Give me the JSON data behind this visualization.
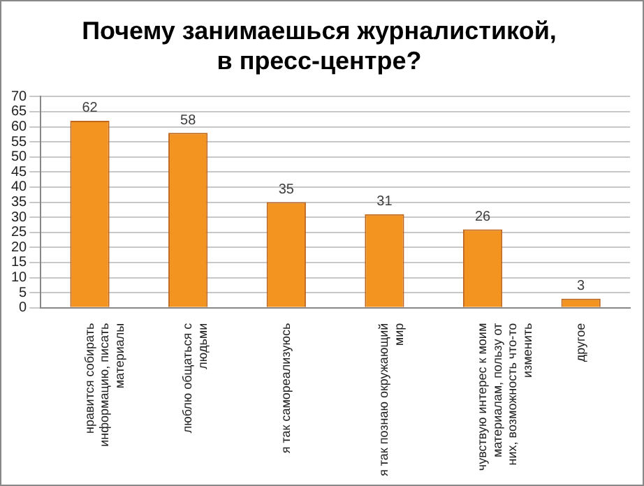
{
  "chart_data": {
    "type": "bar",
    "title": "Почему занимаешься журналистикой, в пресс-центре?",
    "categories": [
      "нравится собирать информацию, писать материалы",
      "люблю общаться с людьми",
      "я так самореализуюсь",
      "я так познаю окружающий мир",
      "чувствую интерес к моим материалам, пользу от них, возможность что-то изменить",
      "другое"
    ],
    "values": [
      62,
      58,
      35,
      31,
      26,
      3
    ],
    "color": "#f39421",
    "ylim": [
      0,
      70
    ],
    "yticks": [
      0,
      5,
      10,
      15,
      20,
      25,
      30,
      35,
      40,
      45,
      50,
      55,
      60,
      65,
      70
    ],
    "grid": "y",
    "data_labels": true,
    "legend": false
  }
}
